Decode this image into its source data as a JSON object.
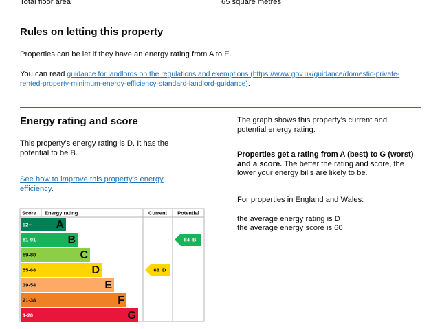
{
  "summary_row": {
    "label": "Total floor area",
    "value": "65 square metres"
  },
  "letting": {
    "heading": "Rules on letting this property",
    "text": "Properties can be let if they have an energy rating from A to E.",
    "guidance_prefix": "You can read",
    "guidance_link": "guidance for landlords on the regulations and exemptions (https://www.gov.uk/guidance/domestic-private-rented-property-minimum-energy-efficiency-standard-landlord-guidance)",
    "guidance_suffix": "."
  },
  "energy": {
    "heading": "Energy rating and score",
    "text": "This property’s energy rating is D. It has the potential to be B.",
    "improve_link": "See how to improve this property’s energy efficiency",
    "improve_suffix": ".",
    "graph_intro": "The graph shows this property’s current and potential energy rating.",
    "rating_bold": "Properties get a rating from A (best) to G (worst) and a score.",
    "rating_text": "The better the rating and score, the lower your energy bills are likely to be.",
    "region": "For properties in England and Wales:",
    "average_rating": "the average energy rating is D",
    "average_score": "the average energy score is 60"
  },
  "chart": {
    "headers": {
      "score": "Score",
      "rating": "Energy rating",
      "current": "Current",
      "potential": "Potential"
    },
    "bands": [
      {
        "score": "92+",
        "letter": "A",
        "color": "#008054",
        "score_color": "#ffffff"
      },
      {
        "score": "81-91",
        "letter": "B",
        "color": "#19b459",
        "score_color": "#ffffff"
      },
      {
        "score": "69-80",
        "letter": "C",
        "color": "#8dce46",
        "score_color": "#0b0c0c"
      },
      {
        "score": "55-68",
        "letter": "D",
        "color": "#ffd500",
        "score_color": "#0b0c0c"
      },
      {
        "score": "39-54",
        "letter": "E",
        "color": "#fcaa65",
        "score_color": "#0b0c0c"
      },
      {
        "score": "21-38",
        "letter": "F",
        "color": "#ef8023",
        "score_color": "#0b0c0c"
      },
      {
        "score": "1-20",
        "letter": "G",
        "color": "#e9153b",
        "score_color": "#ffffff"
      }
    ],
    "current": {
      "score": "68",
      "letter": "D"
    },
    "potential": {
      "score": "84",
      "letter": "B"
    }
  }
}
